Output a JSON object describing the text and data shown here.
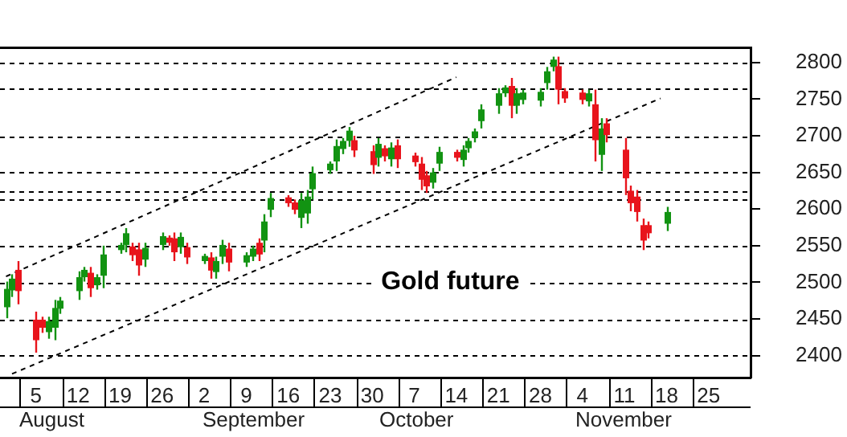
{
  "chart_data": {
    "type": "candlestick",
    "annotations": [
      "Gold future",
      "August",
      "September",
      "October",
      "November"
    ],
    "x": [
      "--07-31",
      "--08-01",
      "--08-02",
      "--08-05",
      "--08-06",
      "--08-07",
      "--08-08",
      "--08-09",
      "--08-12",
      "--08-13",
      "--08-14",
      "--08-15",
      "--08-16",
      "--08-19",
      "--08-20",
      "--08-21",
      "--08-22",
      "--08-23",
      "--08-26",
      "--08-27",
      "--08-28",
      "--08-29",
      "--08-30",
      "--09-02",
      "--09-03",
      "--09-04",
      "--09-05",
      "--09-06",
      "--09-09",
      "--09-10",
      "--09-11",
      "--09-12",
      "--09-13",
      "--09-16",
      "--09-17",
      "--09-18",
      "--09-19",
      "--09-20",
      "--09-23",
      "--09-24",
      "--09-25",
      "--09-26",
      "--09-27",
      "--09-30",
      "--10-01",
      "--10-02",
      "--10-03",
      "--10-04",
      "--10-07",
      "--10-08",
      "--10-09",
      "--10-10",
      "--10-11",
      "--10-14",
      "--10-15",
      "--10-16",
      "--10-17",
      "--10-18",
      "--10-21",
      "--10-22",
      "--10-23",
      "--10-24",
      "--10-25",
      "--10-28",
      "--10-29",
      "--10-30",
      "--10-31",
      "--11-01",
      "--11-04",
      "--11-05",
      "--11-06",
      "--11-07",
      "--11-08",
      "--11-11",
      "--11-12",
      "--11-13",
      "--11-14",
      "--11-15",
      "--11-18"
    ],
    "ohlc": [
      [
        2466,
        2501,
        2451,
        2491
      ],
      [
        2489,
        2511,
        2480,
        2505
      ],
      [
        2517,
        2529,
        2470,
        2488
      ],
      [
        2449,
        2460,
        2404,
        2421
      ],
      [
        2449,
        2453,
        2431,
        2438
      ],
      [
        2432,
        2453,
        2423,
        2447
      ],
      [
        2438,
        2476,
        2421,
        2465
      ],
      [
        2464,
        2480,
        2457,
        2475
      ],
      [
        2488,
        2515,
        2476,
        2507
      ],
      [
        2507,
        2521,
        2501,
        2517
      ],
      [
        2513,
        2521,
        2480,
        2492
      ],
      [
        2496,
        2511,
        2490,
        2507
      ],
      [
        2509,
        2550,
        2492,
        2538
      ],
      [
        2544,
        2554,
        2539,
        2551
      ],
      [
        2551,
        2574,
        2541,
        2567
      ],
      [
        2549,
        2554,
        2529,
        2537
      ],
      [
        2545,
        2554,
        2509,
        2523
      ],
      [
        2531,
        2554,
        2521,
        2547
      ],
      [
        2551,
        2568,
        2544,
        2563
      ],
      [
        2561,
        2564,
        2550,
        2554
      ],
      [
        2560,
        2568,
        2529,
        2541
      ],
      [
        2548,
        2568,
        2539,
        2562
      ],
      [
        2548,
        2554,
        2525,
        2534
      ],
      [
        2529,
        2539,
        2525,
        2536
      ],
      [
        2534,
        2541,
        2505,
        2516
      ],
      [
        2514,
        2535,
        2505,
        2529
      ],
      [
        2535,
        2558,
        2525,
        2551
      ],
      [
        2546,
        2554,
        2515,
        2527
      ],
      [
        2527,
        2541,
        2521,
        2537
      ],
      [
        2535,
        2550,
        2529,
        2546
      ],
      [
        2554,
        2560,
        2529,
        2538
      ],
      [
        2557,
        2593,
        2541,
        2583
      ],
      [
        2599,
        2622,
        2589,
        2615
      ],
      [
        2616,
        2619,
        2603,
        2608
      ],
      [
        2609,
        2613,
        2593,
        2599
      ],
      [
        2588,
        2622,
        2574,
        2612
      ],
      [
        2594,
        2626,
        2580,
        2617
      ],
      [
        2627,
        2658,
        2613,
        2649
      ],
      [
        2653,
        2665,
        2648,
        2662
      ],
      [
        2665,
        2695,
        2652,
        2686
      ],
      [
        2682,
        2697,
        2675,
        2693
      ],
      [
        2693,
        2712,
        2685,
        2707
      ],
      [
        2694,
        2700,
        2671,
        2680
      ],
      [
        2679,
        2687,
        2648,
        2660
      ],
      [
        2670,
        2697,
        2658,
        2689
      ],
      [
        2683,
        2687,
        2665,
        2672
      ],
      [
        2668,
        2691,
        2658,
        2684
      ],
      [
        2687,
        2695,
        2656,
        2668
      ],
      [
        2673,
        2677,
        2658,
        2664
      ],
      [
        2662,
        2671,
        2626,
        2640
      ],
      [
        2646,
        2652,
        2622,
        2631
      ],
      [
        2636,
        2656,
        2628,
        2650
      ],
      [
        2662,
        2685,
        2652,
        2678
      ],
      [
        2678,
        2681,
        2665,
        2670
      ],
      [
        2667,
        2687,
        2658,
        2681
      ],
      [
        2683,
        2697,
        2677,
        2693
      ],
      [
        2697,
        2710,
        2691,
        2706
      ],
      [
        2720,
        2743,
        2710,
        2736
      ],
      [
        2741,
        2765,
        2730,
        2758
      ],
      [
        2758,
        2769,
        2753,
        2766
      ],
      [
        2768,
        2779,
        2724,
        2741
      ],
      [
        2741,
        2765,
        2730,
        2758
      ],
      [
        2749,
        2763,
        2743,
        2759
      ],
      [
        2748,
        2765,
        2740,
        2760
      ],
      [
        2772,
        2794,
        2763,
        2788
      ],
      [
        2794,
        2808,
        2788,
        2804
      ],
      [
        2795,
        2808,
        2743,
        2763
      ],
      [
        2761,
        2765,
        2745,
        2751
      ],
      [
        2759,
        2763,
        2743,
        2749
      ],
      [
        2747,
        2763,
        2740,
        2758
      ],
      [
        2743,
        2763,
        2665,
        2694
      ],
      [
        2674,
        2724,
        2652,
        2710
      ],
      [
        2717,
        2724,
        2691,
        2701
      ],
      [
        2681,
        2697,
        2619,
        2642
      ],
      [
        2625,
        2632,
        2597,
        2608
      ],
      [
        2617,
        2626,
        2583,
        2596
      ],
      [
        2578,
        2587,
        2544,
        2557
      ],
      [
        2578,
        2583,
        2560,
        2567
      ],
      [
        2580,
        2603,
        2570,
        2596
      ]
    ],
    "series": [
      {
        "type": "line",
        "color": "#000000",
        "line_style": "dashed",
        "x": [
          "--07-31",
          "--10-14"
        ],
        "values": [
          2508,
          2780
        ]
      },
      {
        "type": "line",
        "color": "#000000",
        "line_style": "dashed",
        "x": [
          "--08-01",
          "--11-17"
        ],
        "values": [
          2375,
          2751
        ]
      }
    ],
    "ref_lines": [
      {
        "axis": "y",
        "value": 2800,
        "color": "#000000",
        "line_style": "dashed"
      },
      {
        "axis": "y",
        "value": 2765,
        "color": "#000000",
        "line_style": "dashed"
      },
      {
        "axis": "y",
        "value": 2700,
        "color": "#000000",
        "line_style": "dashed"
      },
      {
        "axis": "y",
        "value": 2650,
        "color": "#000000",
        "line_style": "dashed"
      },
      {
        "axis": "y",
        "value": 2624,
        "color": "#000000",
        "line_style": "dashed"
      },
      {
        "axis": "y",
        "value": 2613,
        "color": "#000000",
        "line_style": "dashed"
      },
      {
        "axis": "y",
        "value": 2550,
        "color": "#000000",
        "line_style": "dashed"
      },
      {
        "axis": "y",
        "value": 2500,
        "color": "#000000",
        "line_style": "dashed"
      },
      {
        "axis": "y",
        "value": 2450,
        "color": "#000000",
        "line_style": "dashed"
      },
      {
        "axis": "y",
        "value": 2400,
        "color": "#000000",
        "line_style": "dashed"
      }
    ],
    "xlim": [
      "--07-30",
      "--12-02"
    ],
    "xticks": [
      {
        "value": "--08-05",
        "label": "5"
      },
      {
        "value": "--08-12",
        "label": "12"
      },
      {
        "value": "--08-19",
        "label": "19"
      },
      {
        "value": "--08-26",
        "label": "26"
      },
      {
        "value": "--09-02",
        "label": "2"
      },
      {
        "value": "--09-09",
        "label": "9"
      },
      {
        "value": "--09-16",
        "label": "16"
      },
      {
        "value": "--09-23",
        "label": "23"
      },
      {
        "value": "--09-30",
        "label": "30"
      },
      {
        "value": "--10-07",
        "label": "7"
      },
      {
        "value": "--10-14",
        "label": "14"
      },
      {
        "value": "--10-21",
        "label": "21"
      },
      {
        "value": "--10-28",
        "label": "28"
      },
      {
        "value": "--11-04",
        "label": "4"
      },
      {
        "value": "--11-11",
        "label": "11"
      },
      {
        "value": "--11-18",
        "label": "18"
      },
      {
        "value": "--11-25",
        "label": "25"
      }
    ],
    "ylim": [
      2370,
      2820
    ],
    "yticks": [
      2400,
      2450,
      2500,
      2550,
      2600,
      2650,
      2700,
      2750,
      2800
    ],
    "grid": false,
    "legend": false,
    "marker": "none"
  }
}
